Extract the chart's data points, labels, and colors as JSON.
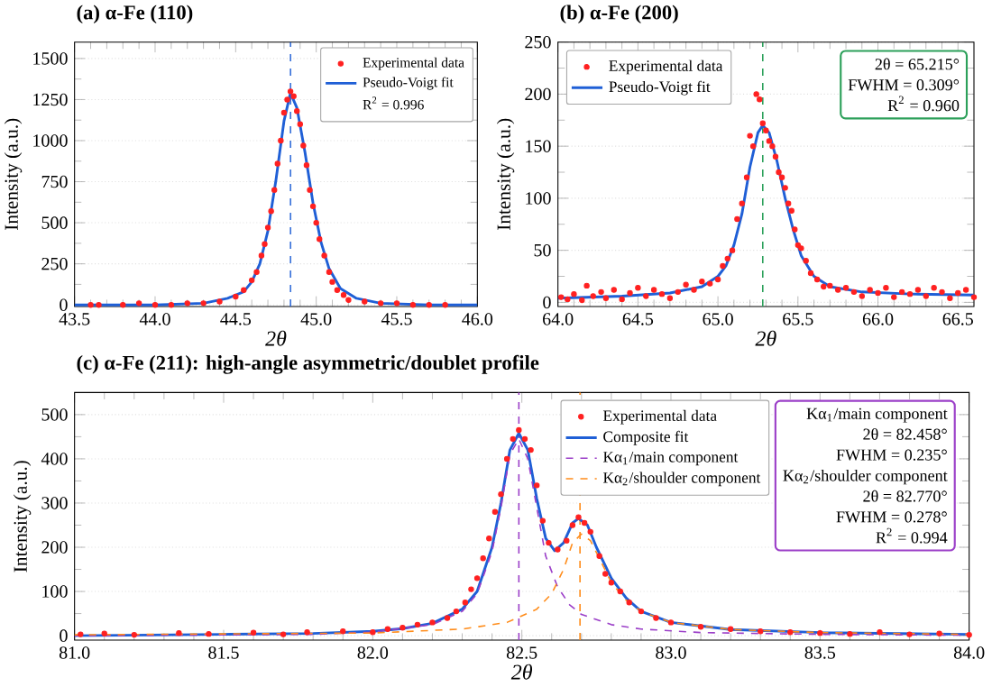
{
  "chart_data": [
    {
      "type": "line",
      "title": "(a) α-Fe (110)",
      "xlabel": "2θ",
      "ylabel": "Intensity (a.u.)",
      "xlim": [
        43.5,
        46.0
      ],
      "xticks": [
        43.5,
        {
          "value": 44,
          "label": "44.0"
        },
        44.5,
        {
          "value": 45,
          "label": "45.0"
        },
        45.5,
        {
          "value": 46,
          "label": "46.0"
        }
      ],
      "ylim": [
        -10,
        1600
      ],
      "yticks": [
        0,
        250,
        500,
        750,
        1000,
        1250,
        1500
      ],
      "grid": "y",
      "legend": "top right",
      "marker": "none",
      "series": [
        {
          "name": "Experimental data",
          "type": "scatter",
          "marker": "circle",
          "color": "#ff2020",
          "x": [
            43.6,
            43.65,
            43.8,
            43.9,
            44.0,
            44.1,
            44.2,
            44.3,
            44.4,
            44.5,
            44.55,
            44.6,
            44.63,
            44.66,
            44.68,
            44.7,
            44.72,
            44.74,
            44.76,
            44.78,
            44.8,
            44.82,
            44.84,
            44.86,
            44.88,
            44.9,
            44.92,
            44.94,
            44.96,
            44.98,
            45.0,
            45.02,
            45.05,
            45.08,
            45.1,
            45.13,
            45.17,
            45.2,
            45.3,
            45.4,
            45.5,
            45.6,
            45.7,
            45.8
          ],
          "values": [
            0,
            0,
            0,
            10,
            0,
            0,
            10,
            10,
            20,
            50,
            90,
            150,
            200,
            300,
            370,
            470,
            570,
            700,
            860,
            1000,
            1170,
            1250,
            1300,
            1270,
            1180,
            1100,
            970,
            850,
            700,
            600,
            500,
            400,
            300,
            200,
            140,
            90,
            60,
            30,
            20,
            10,
            10,
            0,
            0,
            0
          ]
        },
        {
          "name": "Pseudo-Voigt fit",
          "color": "#1f5fd6",
          "x": [
            43.5,
            44.0,
            44.3,
            44.45,
            44.55,
            44.6,
            44.65,
            44.7,
            44.75,
            44.8,
            44.84,
            44.88,
            44.93,
            44.98,
            45.03,
            45.08,
            45.15,
            45.25,
            45.4,
            45.7,
            46.0
          ],
          "values": [
            0,
            0,
            10,
            40,
            80,
            140,
            250,
            450,
            760,
            1120,
            1290,
            1200,
            930,
            620,
            380,
            220,
            100,
            40,
            10,
            0,
            0
          ]
        }
      ],
      "ref_lines": [
        {
          "axis": "x",
          "value": 44.84,
          "color": "#1f5fd6",
          "line_style": "dashed"
        }
      ],
      "annotations": [
        "R$^{2}$ = 0.996"
      ]
    },
    {
      "type": "line",
      "title": "(b) α-Fe (200)",
      "xlabel": "2θ",
      "ylabel": "Intensity (a.u.)",
      "xlim": [
        64.0,
        66.6
      ],
      "xticks": [
        {
          "value": 64,
          "label": "64.0"
        },
        64.5,
        {
          "value": 65,
          "label": "65.0"
        },
        65.5,
        {
          "value": 66,
          "label": "66.0"
        },
        66.5
      ],
      "ylim": [
        -4,
        250
      ],
      "yticks": [
        0,
        50,
        100,
        150,
        200,
        250
      ],
      "grid": "y",
      "legend": "top left",
      "marker": "none",
      "series": [
        {
          "name": "Experimental data",
          "type": "scatter",
          "marker": "circle",
          "color": "#ff2020",
          "x": [
            64.02,
            64.06,
            64.1,
            64.15,
            64.18,
            64.22,
            64.27,
            64.3,
            64.35,
            64.4,
            64.45,
            64.5,
            64.55,
            64.6,
            64.65,
            64.7,
            64.75,
            64.8,
            64.85,
            64.9,
            64.95,
            65.0,
            65.03,
            65.06,
            65.09,
            65.12,
            65.15,
            65.18,
            65.2,
            65.22,
            65.24,
            65.26,
            65.28,
            65.3,
            65.32,
            65.34,
            65.36,
            65.38,
            65.4,
            65.42,
            65.44,
            65.46,
            65.48,
            65.5,
            65.52,
            65.55,
            65.58,
            65.62,
            65.66,
            65.7,
            65.75,
            65.8,
            65.85,
            65.9,
            65.95,
            66.0,
            66.05,
            66.1,
            66.15,
            66.2,
            66.25,
            66.3,
            66.35,
            66.4,
            66.45,
            66.5,
            66.55,
            66.6
          ],
          "values": [
            5,
            3,
            8,
            2,
            16,
            6,
            10,
            4,
            12,
            3,
            9,
            14,
            6,
            12,
            8,
            4,
            10,
            17,
            12,
            20,
            18,
            22,
            35,
            42,
            50,
            80,
            95,
            120,
            160,
            150,
            200,
            195,
            172,
            165,
            155,
            150,
            140,
            125,
            120,
            110,
            95,
            88,
            70,
            55,
            52,
            40,
            28,
            22,
            15,
            16,
            12,
            14,
            10,
            6,
            12,
            9,
            14,
            5,
            10,
            8,
            12,
            6,
            14,
            10,
            4,
            9,
            12,
            5
          ]
        },
        {
          "name": "Pseudo-Voigt fit",
          "color": "#1f5fd6",
          "x": [
            64.0,
            64.4,
            64.7,
            64.9,
            65.0,
            65.05,
            65.1,
            65.15,
            65.2,
            65.25,
            65.28,
            65.32,
            65.37,
            65.42,
            65.47,
            65.52,
            65.6,
            65.7,
            65.9,
            66.2,
            66.6
          ],
          "values": [
            4,
            6,
            9,
            15,
            25,
            35,
            55,
            85,
            130,
            163,
            170,
            163,
            135,
            100,
            70,
            45,
            25,
            15,
            10,
            8,
            7
          ]
        }
      ],
      "ref_lines": [
        {
          "axis": "x",
          "value": 65.28,
          "color": "#2ca05a",
          "line_style": "dashed"
        }
      ],
      "annotations": [
        "2θ = 65.215°",
        "FWHM = 0.309°",
        "R$^{2}$ = 0.960"
      ]
    },
    {
      "type": "line",
      "title": "(c) α-Fe (211): high-angle asymmetric/doublet profile",
      "xlabel": "2θ",
      "ylabel": "Intensity (a.u.)",
      "xlim": [
        81.0,
        84.0
      ],
      "xticks": [
        {
          "value": 81,
          "label": "81.0"
        },
        81.5,
        {
          "value": 82,
          "label": "82.0"
        },
        82.5,
        {
          "value": 83,
          "label": "83.0"
        },
        83.5,
        {
          "value": 84,
          "label": "84.0"
        }
      ],
      "ylim": [
        -10,
        550
      ],
      "yticks": [
        0,
        100,
        200,
        300,
        400,
        500
      ],
      "grid": "y",
      "legend": "top",
      "marker": "none",
      "series": [
        {
          "name": "Experimental data",
          "type": "scatter",
          "marker": "circle",
          "color": "#ff2020",
          "x": [
            81.02,
            81.1,
            81.2,
            81.35,
            81.45,
            81.6,
            81.7,
            81.78,
            81.9,
            82.0,
            82.05,
            82.1,
            82.15,
            82.2,
            82.25,
            82.28,
            82.31,
            82.33,
            82.35,
            82.37,
            82.39,
            82.41,
            82.43,
            82.45,
            82.47,
            82.49,
            82.51,
            82.53,
            82.55,
            82.57,
            82.59,
            82.62,
            82.65,
            82.67,
            82.69,
            82.71,
            82.73,
            82.76,
            82.78,
            82.8,
            82.83,
            82.86,
            82.9,
            82.95,
            83.0,
            83.1,
            83.2,
            83.3,
            83.4,
            83.5,
            83.6,
            83.7,
            83.8,
            83.9,
            84.0
          ],
          "values": [
            3,
            5,
            2,
            6,
            4,
            7,
            3,
            8,
            10,
            8,
            15,
            18,
            25,
            30,
            40,
            55,
            75,
            105,
            130,
            175,
            220,
            280,
            320,
            400,
            445,
            465,
            445,
            420,
            340,
            260,
            210,
            195,
            215,
            250,
            268,
            255,
            235,
            180,
            140,
            120,
            100,
            75,
            55,
            40,
            30,
            20,
            15,
            10,
            8,
            6,
            4,
            8,
            3,
            5,
            2
          ]
        },
        {
          "name": "Composite fit",
          "color": "#1f5fd6",
          "x": [
            81.0,
            81.5,
            81.8,
            82.0,
            82.1,
            82.2,
            82.3,
            82.35,
            82.4,
            82.43,
            82.46,
            82.49,
            82.52,
            82.55,
            82.58,
            82.61,
            82.64,
            82.67,
            82.69,
            82.72,
            82.75,
            82.8,
            82.85,
            82.9,
            83.0,
            83.2,
            83.5,
            84.0
          ],
          "values": [
            0,
            3,
            5,
            10,
            16,
            28,
            60,
            100,
            200,
            300,
            420,
            458,
            420,
            310,
            220,
            192,
            210,
            255,
            265,
            250,
            200,
            130,
            85,
            55,
            30,
            14,
            7,
            3
          ]
        },
        {
          "name": "Kα$_{1}$/main component",
          "line_style": "dashed",
          "color": "#9b3fc8",
          "x": [
            81.0,
            81.8,
            82.0,
            82.2,
            82.3,
            82.35,
            82.4,
            82.43,
            82.46,
            82.49,
            82.52,
            82.55,
            82.58,
            82.62,
            82.66,
            82.7,
            82.8,
            82.9,
            83.1,
            83.5,
            84.0
          ],
          "values": [
            0,
            3,
            8,
            25,
            55,
            95,
            190,
            290,
            410,
            445,
            400,
            290,
            180,
            110,
            70,
            48,
            25,
            15,
            7,
            3,
            1
          ]
        },
        {
          "name": "Kα$_{2}$/shoulder component",
          "line_style": "dashed",
          "color": "#ff8c1a",
          "x": [
            81.0,
            82.0,
            82.3,
            82.45,
            82.55,
            82.6,
            82.64,
            82.67,
            82.7,
            82.73,
            82.76,
            82.8,
            82.85,
            82.9,
            83.0,
            83.2,
            83.5,
            84.0
          ],
          "values": [
            2,
            6,
            15,
            30,
            60,
            95,
            150,
            210,
            230,
            215,
            175,
            120,
            80,
            55,
            30,
            14,
            7,
            3
          ]
        }
      ],
      "ref_lines": [
        {
          "axis": "x",
          "value": 82.49,
          "color": "#9b3fc8",
          "line_style": "dashed"
        },
        {
          "axis": "x",
          "value": 82.695,
          "color": "#ff8c1a",
          "line_style": "dashed"
        }
      ],
      "annotations": [
        "Kα$_{1}$/main component",
        "2θ = 82.458°",
        "FWHM = 0.235°",
        "Kα$_{2}$/shoulder component",
        "2θ = 82.770°",
        "FWHM = 0.278°",
        "R$^{2}$ = 0.994"
      ]
    }
  ]
}
